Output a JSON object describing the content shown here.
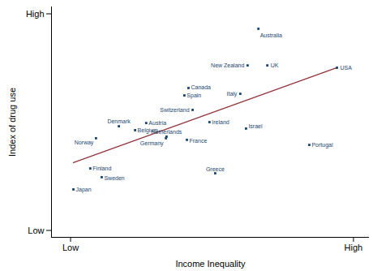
{
  "chart_data": {
    "type": "scatter",
    "x_label": "Income Inequality",
    "y_label": "Index of drug use",
    "labels": [
      "Australia",
      "New Zealand",
      "UK",
      "USA",
      "Canada",
      "Spain",
      "Italy",
      "Switzerland",
      "Denmark",
      "Austria",
      "Belgium",
      "Ireland",
      "Israel",
      "Netherlands",
      "Norway",
      "Germany",
      "France",
      "Portugal",
      "Finland",
      "Sweden",
      "Greece",
      "Japan"
    ],
    "x": [
      65.1,
      61.7,
      67.9,
      89.8,
      43.1,
      41.8,
      59.4,
      44.4,
      21.2,
      29.8,
      26.3,
      49.7,
      61.2,
      36.2,
      14.0,
      36.0,
      42.6,
      81.1,
      12.2,
      15.8,
      51.5,
      6.9
    ],
    "y": [
      90.5,
      74.6,
      74.6,
      73.6,
      64.8,
      61.6,
      62.3,
      55.3,
      48.2,
      49.6,
      46.5,
      50.0,
      47.2,
      43.7,
      43.0,
      43.0,
      42.3,
      40.1,
      29.9,
      26.1,
      27.8,
      20.8
    ],
    "color": "#1a476f",
    "marker": "square",
    "trend_line": {
      "x": [
        6.9,
        89.8
      ],
      "y": [
        32.4,
        73.6
      ],
      "color": "#90353b"
    },
    "xlim": [
      0,
      100
    ],
    "ylim": [
      0,
      100
    ],
    "xticks": [
      {
        "value": 6,
        "label": "Low"
      },
      {
        "value": 95,
        "label": "High"
      }
    ],
    "yticks": [
      {
        "value": 3,
        "label": "Low"
      },
      {
        "value": 97,
        "label": "High"
      }
    ],
    "grid": false
  }
}
